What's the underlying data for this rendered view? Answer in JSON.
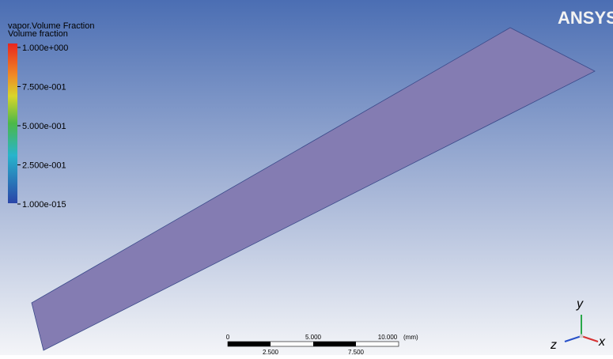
{
  "legend": {
    "title": "vapor.Volume Fraction",
    "subtitle": "Volume fraction",
    "labels": [
      "1.000e+000",
      "7.500e-001",
      "5.000e-001",
      "2.500e-001",
      "1.000e-015"
    ]
  },
  "logo": "ANSYS",
  "scale_bar": {
    "top_labels": [
      "0",
      "5.000",
      "10.000"
    ],
    "unit": "(mm)",
    "bottom_labels": [
      "2.500",
      "7.500"
    ]
  },
  "axes": {
    "y": "y",
    "z": "z",
    "x": "x"
  }
}
